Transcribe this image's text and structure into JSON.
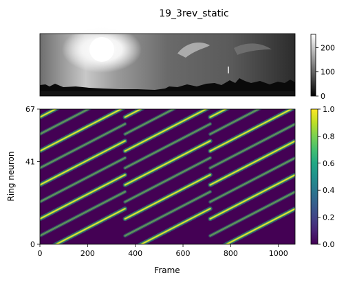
{
  "chart_data": [
    {
      "type": "image",
      "title": "19_3rev_static",
      "colormap": "gray",
      "colorbar": {
        "ticks": [
          0,
          100,
          200
        ],
        "range": [
          0,
          255
        ]
      },
      "axes_visible": false
    },
    {
      "type": "heatmap",
      "colormap": "viridis",
      "xlabel": "Frame",
      "ylabel": "Ring neuron",
      "xlim": [
        0,
        1070
      ],
      "ylim": [
        0,
        67
      ],
      "xticks": [
        0,
        200,
        400,
        600,
        800,
        1000
      ],
      "yticks": [
        0,
        41,
        67
      ],
      "colorbar": {
        "ticks": [
          0.0,
          0.2,
          0.4,
          0.6,
          0.8,
          1.0
        ],
        "range": [
          0,
          1
        ]
      },
      "pattern": {
        "band_period_neurons": 8.4,
        "frames_per_revolution": 357,
        "revolutions": 3,
        "stripe_offsets_neurons": [
          0,
          8.4,
          16.8,
          25.2,
          33.6,
          42,
          50.4,
          58.8,
          67.2
        ]
      }
    }
  ]
}
